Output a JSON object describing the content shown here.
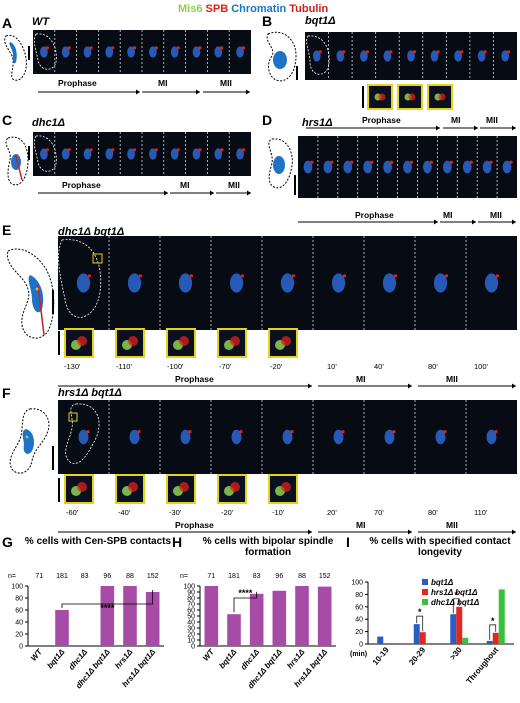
{
  "legend": {
    "mis6": "Mis6",
    "spb": "SPB",
    "chromatin": "Chromatin",
    "tubulin": "Tubulin"
  },
  "colors": {
    "mis6": "#8fd14f",
    "spb": "#e0201b",
    "chromatin": "#1f73c6",
    "tubulin": "#cc2020",
    "bar": "#a64ca6",
    "series_blue": "#2a5cc8",
    "series_red": "#e0291c",
    "series_green": "#36c03c"
  },
  "panels": {
    "A": {
      "letter": "A",
      "genotype": "WT",
      "phases": [
        "Prophase",
        "MI",
        "MII"
      ]
    },
    "B": {
      "letter": "B",
      "genotype": "bqt1Δ",
      "phases": [
        "Prophase",
        "MI",
        "MII"
      ]
    },
    "C": {
      "letter": "C",
      "genotype": "dhc1Δ",
      "phases": [
        "Prophase",
        "MI",
        "MII"
      ]
    },
    "D": {
      "letter": "D",
      "genotype": "hrs1Δ",
      "phases": [
        "Prophase",
        "MI",
        "MII"
      ]
    },
    "E": {
      "letter": "E",
      "genotype": "dhc1Δ bqt1Δ",
      "phases": [
        "Prophase",
        "MI",
        "MII"
      ],
      "times": [
        "-130'",
        "-110'",
        "-100'",
        "-70'",
        "-20'",
        "10'",
        "40'",
        "80'",
        "100'"
      ]
    },
    "F": {
      "letter": "F",
      "genotype": "hrs1Δ bqt1Δ",
      "phases": [
        "Prophase",
        "MI",
        "MII"
      ],
      "times": [
        "-60'",
        "-40'",
        "-30'",
        "-20'",
        "-10'",
        "20'",
        "70'",
        "80'",
        "110'"
      ]
    },
    "G": {
      "letter": "G",
      "title": "% cells with Cen-SPB contacts"
    },
    "H": {
      "letter": "H",
      "title": "% cells with bipolar spindle formation"
    },
    "I": {
      "letter": "I",
      "title": "% cells with specified contact longevity"
    }
  },
  "chart_data": [
    {
      "type": "bar",
      "title": "% cells with Cen-SPB contacts",
      "categories": [
        "WT",
        "bqt1Δ",
        "dhc1Δ",
        "dhc1Δ bqt1Δ",
        "hrs1Δ",
        "hrs1Δ bqt1Δ"
      ],
      "n_label": "n=",
      "n": [
        71,
        181,
        83,
        96,
        88,
        152
      ],
      "values": [
        0,
        60,
        0,
        100,
        100,
        90
      ],
      "ylim": [
        0,
        100
      ],
      "yticks": [
        0,
        20,
        40,
        60,
        80,
        100
      ],
      "annotations": [
        "****"
      ]
    },
    {
      "type": "bar",
      "title": "% cells with bipolar spindle formation",
      "categories": [
        "WT",
        "bqt1Δ",
        "dhc1Δ",
        "dhc1Δ bqt1Δ",
        "hrs1Δ",
        "hrs1Δ bqt1Δ"
      ],
      "n_label": "n=",
      "n": [
        71,
        181,
        83,
        96,
        88,
        152
      ],
      "values": [
        100,
        53,
        87,
        92,
        100,
        99
      ],
      "ylim": [
        0,
        100
      ],
      "yticks": [
        0,
        10,
        20,
        30,
        40,
        50,
        60,
        70,
        80,
        90,
        100
      ],
      "annotations": [
        "****"
      ]
    },
    {
      "type": "bar",
      "title": "% cells with specified contact longevity",
      "categories": [
        "10-19",
        "20-29",
        ">30",
        "Throughout"
      ],
      "xlabel": "(min)",
      "ylim": [
        0,
        100
      ],
      "yticks": [
        0,
        20,
        40,
        60,
        80,
        100
      ],
      "series": [
        {
          "name": "bqt1Δ",
          "values": [
            12,
            32,
            48,
            5
          ]
        },
        {
          "name": "hrs1Δ bqt1Δ",
          "values": [
            0,
            19,
            60,
            18
          ]
        },
        {
          "name": "dhc1Δ bqt1Δ",
          "values": [
            0,
            0,
            10,
            88
          ]
        }
      ],
      "annotations": [
        "*",
        "*",
        "*"
      ]
    }
  ]
}
